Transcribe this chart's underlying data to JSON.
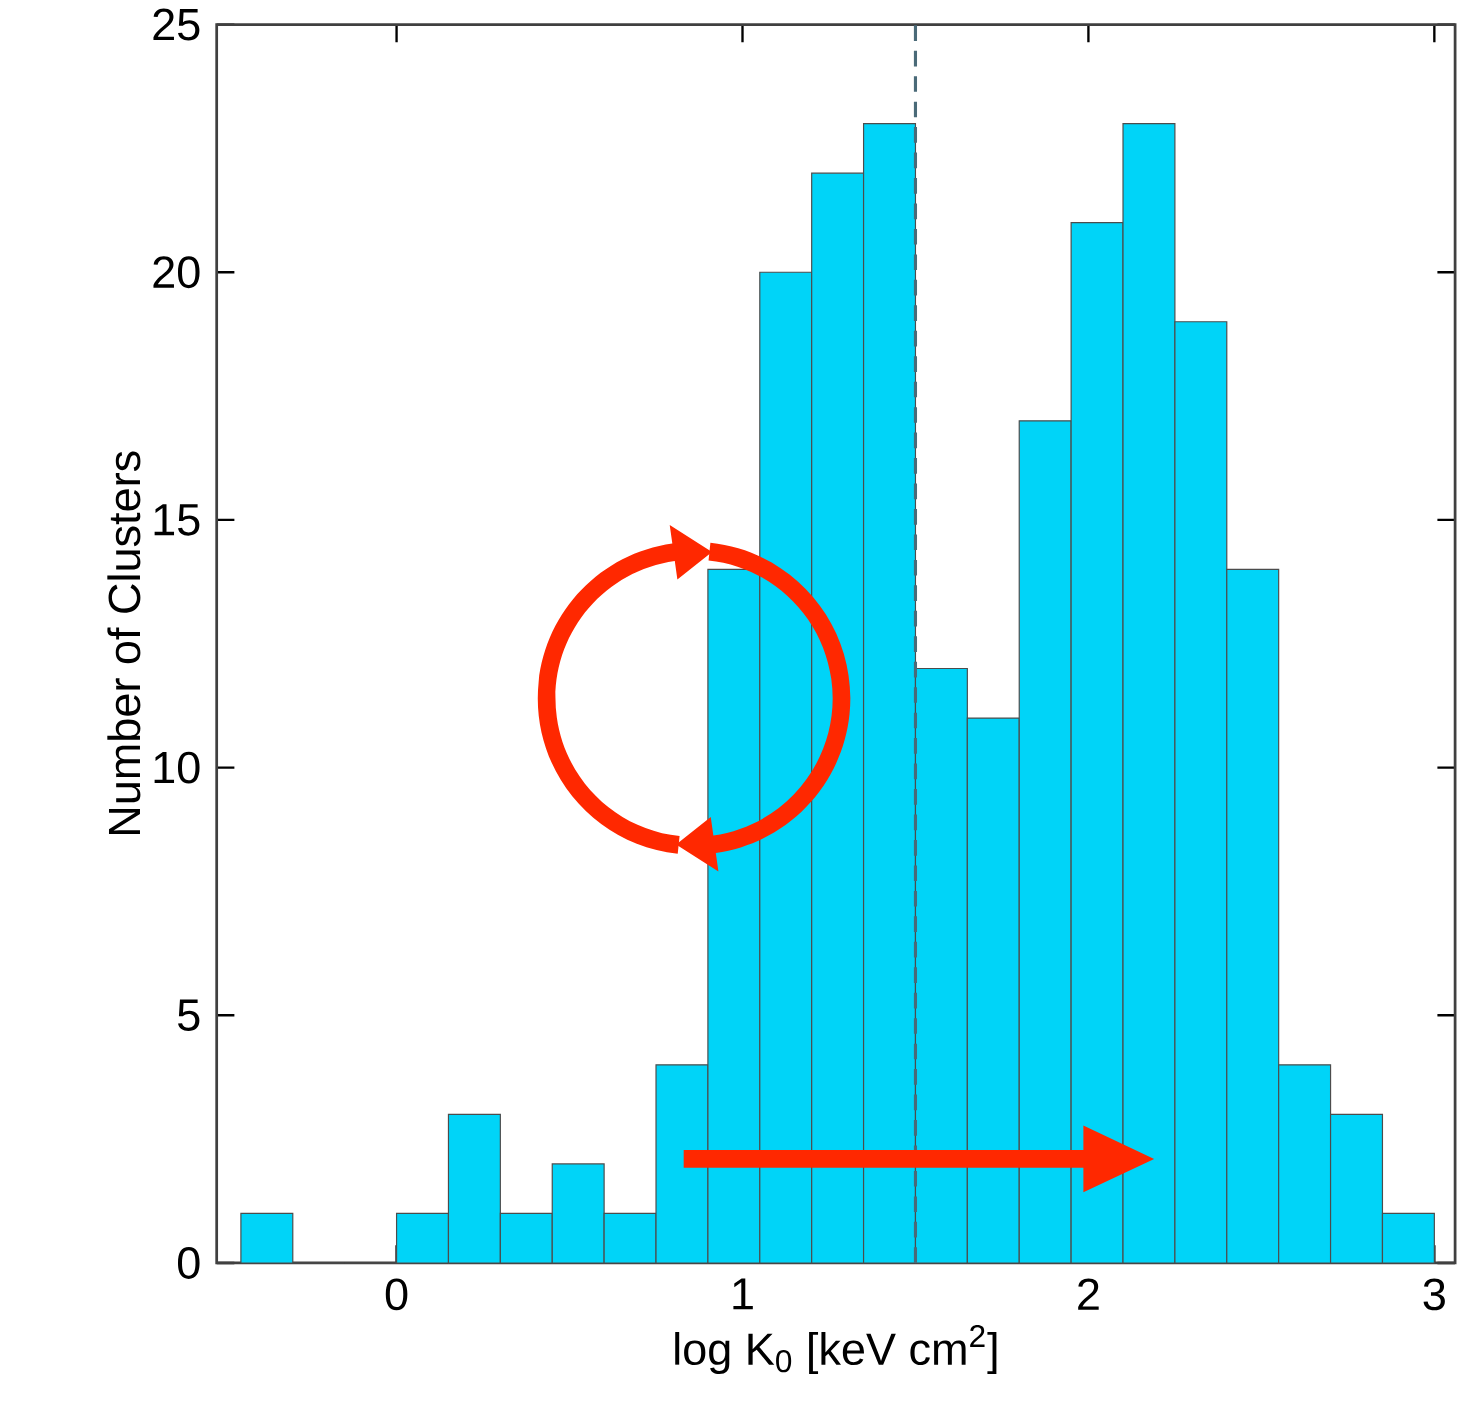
{
  "chart_data": {
    "type": "histogram",
    "xlabel": "log K$_{0}$ [keV cm$^{2}$]",
    "ylabel": "Number of Clusters",
    "bins": [
      -0.45,
      -0.3,
      -0.15,
      0,
      0.15,
      0.3,
      0.45,
      0.6,
      0.75,
      0.9,
      1.05,
      1.2,
      1.35,
      1.5,
      1.65,
      1.8,
      1.95,
      2.1,
      2.25,
      2.4,
      2.55,
      2.7,
      2.85,
      3.0
    ],
    "values": [
      1,
      0,
      0,
      1,
      3,
      1,
      2,
      1,
      4,
      14,
      20,
      22,
      23,
      12,
      11,
      17,
      21,
      23,
      19,
      14,
      4,
      3,
      1
    ],
    "color": "#00d4f8",
    "xlim": [
      -0.52,
      3.06
    ],
    "ylim": [
      0,
      25
    ],
    "xticks": [
      0,
      1,
      2,
      3
    ],
    "yticks": [
      0,
      5,
      10,
      15,
      20,
      25
    ],
    "ref_lines": [
      {
        "axis": "x",
        "value": 1.5,
        "color": "#4a6a78",
        "line_style": "dashed"
      }
    ]
  }
}
